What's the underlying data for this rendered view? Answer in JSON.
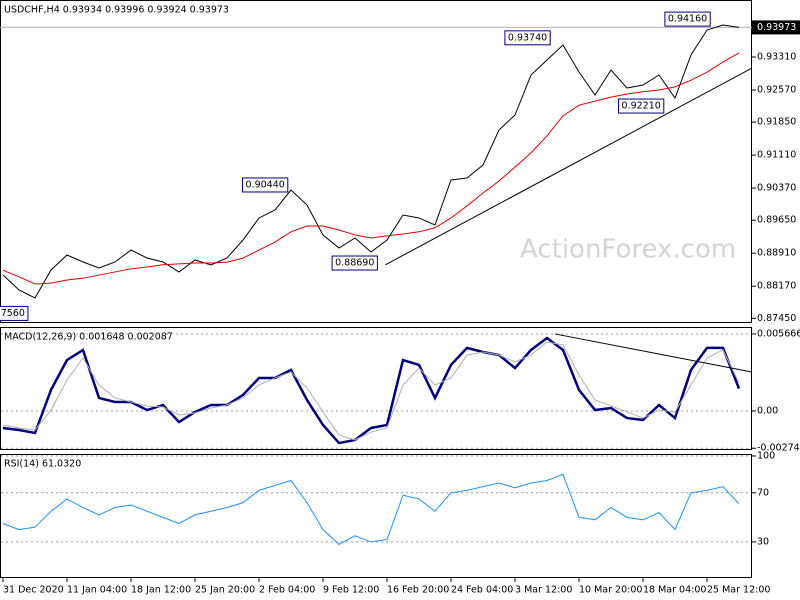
{
  "watermark": "ActionForex.com",
  "chart_data": [
    {
      "type": "line",
      "title": "USDCHF,H4  0.93934 0.93996 0.93924 0.93973",
      "series": [
        {
          "color": "#000000",
          "values": [
            0.88421,
            0.88085,
            0.87906,
            0.88534,
            0.8887,
            0.88713,
            0.88578,
            0.88713,
            0.88982,
            0.88803,
            0.88713,
            0.88489,
            0.88758,
            0.88646,
            0.88803,
            0.89206,
            0.897,
            0.89879,
            0.90327,
            0.89991,
            0.89318,
            0.89027,
            0.89251,
            0.88937,
            0.89206,
            0.89767,
            0.897,
            0.89543,
            0.90552,
            0.90597,
            0.90888,
            0.91673,
            0.92009,
            0.92906,
            0.93243,
            0.93579,
            0.92973,
            0.92458,
            0.93018,
            0.92615,
            0.92682,
            0.92906,
            0.9239,
            0.93355,
            0.93915,
            0.94027,
            0.93973
          ]
        },
        {
          "color": "#e00000",
          "values": [
            0.8853,
            0.8838,
            0.8822,
            0.8824,
            0.8831,
            0.8835,
            0.8842,
            0.8849,
            0.8856,
            0.886,
            0.8865,
            0.8867,
            0.8869,
            0.8869,
            0.8871,
            0.888,
            0.8898,
            0.8916,
            0.8939,
            0.8952,
            0.8952,
            0.8943,
            0.8932,
            0.8925,
            0.893,
            0.8934,
            0.8939,
            0.8948,
            0.897,
            0.8997,
            0.9026,
            0.9053,
            0.9084,
            0.9116,
            0.9154,
            0.9199,
            0.9223,
            0.9232,
            0.9241,
            0.9248,
            0.9253,
            0.9257,
            0.9264,
            0.9279,
            0.9297,
            0.932,
            0.934
          ]
        }
      ],
      "ylim": [
        0.87345,
        0.94588
      ],
      "yticks": [
        {
          "value": 0.9331,
          "label": "0.93310"
        },
        {
          "value": 0.9257,
          "label": "0.92570"
        },
        {
          "value": 0.9185,
          "label": "0.91850"
        },
        {
          "value": 0.9111,
          "label": "0.91110"
        },
        {
          "value": 0.9037,
          "label": "0.90370"
        },
        {
          "value": 0.8965,
          "label": "0.89650"
        },
        {
          "value": 0.8891,
          "label": "0.88910"
        },
        {
          "value": 0.8817,
          "label": "0.88170"
        },
        {
          "value": 0.8745,
          "label": "0.87450"
        }
      ],
      "current_price": {
        "value": 0.93973,
        "label": "0.93973"
      },
      "annotations": [
        {
          "text": "0.94160",
          "x": 44.2,
          "y": 0.9416
        },
        {
          "text": "0.93740",
          "x": 34.2,
          "y": 0.9374
        },
        {
          "text": "0.90440",
          "x": 17.8,
          "y": 0.9044
        },
        {
          "text": "0.88690",
          "x": 23.4,
          "y": 0.8869
        },
        {
          "text": "0.92210",
          "x": 41.3,
          "y": 0.9221
        },
        {
          "text": "7560",
          "x": 1.56,
          "y": 0.8756
        }
      ],
      "trendline": {
        "x": [
          23.9,
          46.8
        ],
        "y": [
          0.8865,
          0.9306
        ]
      }
    },
    {
      "type": "line",
      "title": "MACD(12,26,9) 0.001648 0.002087",
      "series": [
        {
          "color": "#000080",
          "values": [
            -0.00125,
            -0.0014,
            -0.00162,
            0.00155,
            0.00375,
            0.00449,
            0.00096,
            0.00066,
            0.00066,
            7e-05,
            0.00044,
            -0.00081,
            -7e-05,
            0.00044,
            0.00044,
            0.00118,
            0.00243,
            0.00243,
            0.00302,
            0.00081,
            -0.00103,
            -0.00236,
            -0.00213,
            -0.00125,
            -0.00103,
            0.00375,
            0.00339,
            0.00096,
            0.00339,
            0.00464,
            0.00434,
            0.00412,
            0.00316,
            0.00449,
            0.00537,
            0.00449,
            0.00155,
            7e-05,
            0.00022,
            -0.00052,
            -0.00066,
            0.00044,
            -0.00052,
            0.00302,
            0.00464,
            0.00464,
            0.00165
          ]
        },
        {
          "color": "#b0b0b0",
          "values": [
            -0.00103,
            -0.00125,
            -0.0014,
            7e-05,
            0.00228,
            0.0039,
            0.00191,
            0.00096,
            0.00066,
            0.00037,
            0.00029,
            -0.00029,
            -0.00015,
            0.00022,
            0.00044,
            0.00096,
            0.00191,
            0.00243,
            0.00287,
            0.00169,
            -7e-05,
            -0.00177,
            -0.00213,
            -0.00155,
            -0.00125,
            0.00191,
            0.00316,
            0.00191,
            0.00243,
            0.00412,
            0.00434,
            0.00412,
            0.00361,
            0.00412,
            0.00508,
            0.00486,
            0.00265,
            0.00081,
            0.00037,
            -7e-05,
            -0.00052,
            7e-05,
            -7e-05,
            0.00191,
            0.0039,
            0.00449,
            0.00209
          ]
        }
      ],
      "ylim": [
        -0.00287,
        0.00618
      ],
      "yticks": [
        0.005666,
        {
          "value": 0,
          "label": "0.00"
        },
        -0.002741
      ],
      "trendline": {
        "x": [
          34.5,
          46.8
        ],
        "y": [
          0.00567,
          0.00287
        ]
      }
    },
    {
      "type": "line",
      "title": "RSI(14) 61.0320",
      "series": [
        {
          "color": "#1e90ff",
          "values": [
            45,
            40,
            42,
            55,
            65,
            58,
            52,
            58,
            60,
            55,
            50,
            45,
            52,
            55,
            58,
            62,
            72,
            76,
            80,
            62,
            40,
            28,
            35,
            30,
            32,
            68,
            65,
            55,
            70,
            72,
            75,
            78,
            74,
            78,
            80,
            85,
            50,
            48,
            58,
            50,
            48,
            54,
            40,
            70,
            72,
            75,
            61.032
          ]
        }
      ],
      "ylim": [
        0.6,
        101.6
      ],
      "yticks": [
        100,
        70,
        30
      ],
      "categories": [
        "31 Dec 2020",
        null,
        null,
        null,
        "11 Jan 04:00",
        null,
        null,
        null,
        "18 Jan 12:00",
        null,
        null,
        null,
        "25 Jan 20:00",
        null,
        null,
        null,
        "2 Feb 04:00",
        null,
        null,
        null,
        "9 Feb 12:00",
        null,
        null,
        null,
        "16 Feb 20:00",
        null,
        null,
        null,
        "24 Feb 04:00",
        null,
        null,
        null,
        "3 Mar 12:00",
        null,
        null,
        null,
        "10 Mar 20:00",
        null,
        null,
        null,
        "18 Mar 04:00",
        null,
        null,
        null,
        "25 Mar 12:00",
        null,
        null
      ]
    }
  ]
}
